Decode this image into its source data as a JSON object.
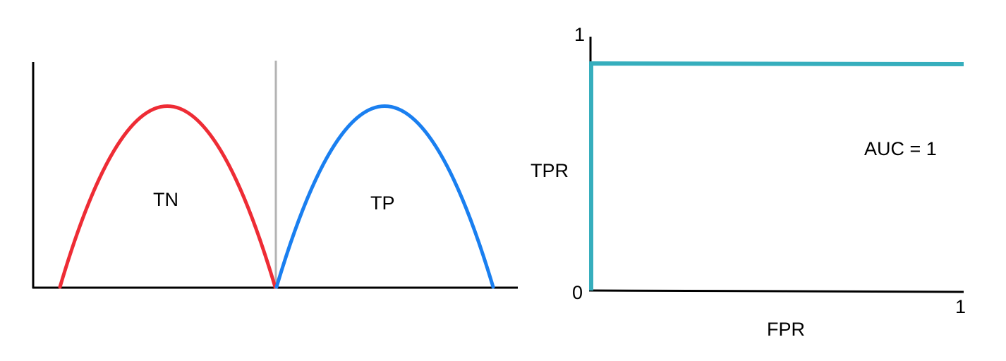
{
  "distribution_panel": {
    "negative_label": "TN",
    "positive_label": "TP",
    "negative_color": "#ee2c35",
    "positive_color": "#1a7ff0",
    "threshold_color": "#b3b3b3",
    "axis_color": "#000000"
  },
  "roc_panel": {
    "y_axis_label": "TPR",
    "x_axis_label": "FPR",
    "y_tick_top": "1",
    "y_tick_bottom": "0",
    "x_tick_right": "1",
    "annotation": "AUC = 1",
    "curve_color": "#36aebd",
    "axis_color": "#000000",
    "curve": {
      "fpr": [
        0,
        0,
        1
      ],
      "tpr": [
        0,
        1,
        1
      ]
    }
  }
}
